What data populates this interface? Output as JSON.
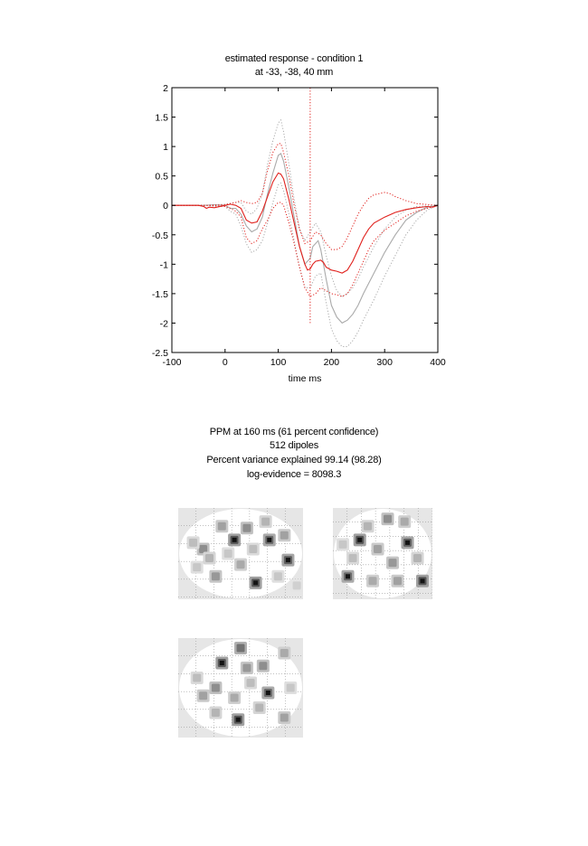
{
  "chart_data": {
    "type": "line",
    "title": "estimated response - condition 1",
    "subtitle": "at -33, -38, 40 mm",
    "xlabel": "time  ms",
    "ylabel": "",
    "xlim": [
      -100,
      400
    ],
    "ylim": [
      -2.5,
      2
    ],
    "xticks": [
      -100,
      0,
      100,
      200,
      300,
      400
    ],
    "yticks": [
      2,
      1.5,
      1,
      0.5,
      0,
      -0.5,
      -1,
      -1.5,
      -2,
      -2.5
    ],
    "vline_x": 160,
    "grid": false,
    "legend": "none",
    "series": [
      {
        "color": "#aaaaaa",
        "style": "solid",
        "points": [
          [
            -100,
            0
          ],
          [
            -40,
            0
          ],
          [
            -20,
            0.01
          ],
          [
            0,
            0
          ],
          [
            10,
            -0.05
          ],
          [
            20,
            -0.05
          ],
          [
            30,
            -0.15
          ],
          [
            40,
            -0.35
          ],
          [
            50,
            -0.45
          ],
          [
            60,
            -0.4
          ],
          [
            70,
            -0.2
          ],
          [
            80,
            0.2
          ],
          [
            90,
            0.55
          ],
          [
            100,
            0.85
          ],
          [
            105,
            0.88
          ],
          [
            110,
            0.75
          ],
          [
            120,
            0.3
          ],
          [
            130,
            -0.2
          ],
          [
            140,
            -0.7
          ],
          [
            150,
            -1.0
          ],
          [
            160,
            -0.9
          ],
          [
            165,
            -0.7
          ],
          [
            175,
            -0.6
          ],
          [
            180,
            -0.75
          ],
          [
            190,
            -1.25
          ],
          [
            200,
            -1.7
          ],
          [
            210,
            -1.9
          ],
          [
            220,
            -2.0
          ],
          [
            230,
            -1.95
          ],
          [
            240,
            -1.85
          ],
          [
            250,
            -1.7
          ],
          [
            260,
            -1.5
          ],
          [
            280,
            -1.15
          ],
          [
            300,
            -0.8
          ],
          [
            320,
            -0.5
          ],
          [
            340,
            -0.25
          ],
          [
            360,
            -0.12
          ],
          [
            380,
            -0.03
          ],
          [
            400,
            0
          ]
        ]
      },
      {
        "color": "#aaaaaa",
        "style": "dotted",
        "points": [
          [
            -100,
            0
          ],
          [
            -40,
            0
          ],
          [
            0,
            0.02
          ],
          [
            20,
            0.05
          ],
          [
            30,
            0.05
          ],
          [
            40,
            -0.1
          ],
          [
            50,
            -0.15
          ],
          [
            60,
            -0.05
          ],
          [
            70,
            0.2
          ],
          [
            80,
            0.7
          ],
          [
            90,
            1.1
          ],
          [
            100,
            1.4
          ],
          [
            105,
            1.45
          ],
          [
            110,
            1.25
          ],
          [
            120,
            0.7
          ],
          [
            130,
            0.1
          ],
          [
            140,
            -0.4
          ],
          [
            150,
            -0.6
          ],
          [
            160,
            -0.45
          ],
          [
            170,
            -0.3
          ],
          [
            180,
            -0.45
          ],
          [
            190,
            -0.85
          ],
          [
            200,
            -1.2
          ],
          [
            210,
            -1.45
          ],
          [
            220,
            -1.55
          ],
          [
            230,
            -1.5
          ],
          [
            240,
            -1.4
          ],
          [
            250,
            -1.25
          ],
          [
            260,
            -1.05
          ],
          [
            280,
            -0.7
          ],
          [
            300,
            -0.4
          ],
          [
            320,
            -0.2
          ],
          [
            340,
            -0.08
          ],
          [
            360,
            -0.02
          ],
          [
            400,
            0
          ]
        ]
      },
      {
        "color": "#aaaaaa",
        "style": "dotted",
        "points": [
          [
            -100,
            0
          ],
          [
            -40,
            0
          ],
          [
            0,
            -0.02
          ],
          [
            10,
            -0.1
          ],
          [
            20,
            -0.15
          ],
          [
            30,
            -0.35
          ],
          [
            40,
            -0.65
          ],
          [
            50,
            -0.8
          ],
          [
            60,
            -0.75
          ],
          [
            70,
            -0.6
          ],
          [
            80,
            -0.3
          ],
          [
            90,
            0.05
          ],
          [
            100,
            0.35
          ],
          [
            105,
            0.38
          ],
          [
            110,
            0.25
          ],
          [
            120,
            -0.15
          ],
          [
            130,
            -0.6
          ],
          [
            140,
            -1.05
          ],
          [
            150,
            -1.4
          ],
          [
            160,
            -1.4
          ],
          [
            170,
            -1.2
          ],
          [
            180,
            -1.15
          ],
          [
            190,
            -1.65
          ],
          [
            200,
            -2.1
          ],
          [
            210,
            -2.3
          ],
          [
            220,
            -2.4
          ],
          [
            230,
            -2.4
          ],
          [
            240,
            -2.3
          ],
          [
            250,
            -2.15
          ],
          [
            260,
            -1.95
          ],
          [
            280,
            -1.6
          ],
          [
            300,
            -1.2
          ],
          [
            320,
            -0.85
          ],
          [
            340,
            -0.5
          ],
          [
            360,
            -0.25
          ],
          [
            380,
            -0.08
          ],
          [
            400,
            0
          ]
        ]
      },
      {
        "color": "#e0201c",
        "style": "solid",
        "points": [
          [
            -100,
            0
          ],
          [
            -50,
            0
          ],
          [
            -40,
            -0.02
          ],
          [
            -35,
            -0.05
          ],
          [
            -30,
            -0.03
          ],
          [
            -20,
            -0.04
          ],
          [
            0,
            0
          ],
          [
            10,
            0.02
          ],
          [
            20,
            0
          ],
          [
            30,
            -0.05
          ],
          [
            40,
            -0.25
          ],
          [
            50,
            -0.3
          ],
          [
            60,
            -0.28
          ],
          [
            70,
            -0.1
          ],
          [
            80,
            0.15
          ],
          [
            90,
            0.4
          ],
          [
            100,
            0.55
          ],
          [
            105,
            0.53
          ],
          [
            110,
            0.45
          ],
          [
            120,
            0.1
          ],
          [
            130,
            -0.3
          ],
          [
            140,
            -0.7
          ],
          [
            150,
            -1.0
          ],
          [
            155,
            -1.1
          ],
          [
            160,
            -1.08
          ],
          [
            165,
            -1.0
          ],
          [
            170,
            -0.95
          ],
          [
            180,
            -0.93
          ],
          [
            185,
            -0.97
          ],
          [
            190,
            -1.05
          ],
          [
            200,
            -1.1
          ],
          [
            210,
            -1.12
          ],
          [
            220,
            -1.15
          ],
          [
            230,
            -1.1
          ],
          [
            240,
            -0.95
          ],
          [
            250,
            -0.75
          ],
          [
            260,
            -0.55
          ],
          [
            270,
            -0.4
          ],
          [
            280,
            -0.3
          ],
          [
            300,
            -0.2
          ],
          [
            320,
            -0.12
          ],
          [
            340,
            -0.07
          ],
          [
            360,
            -0.04
          ],
          [
            380,
            -0.02
          ],
          [
            390,
            -0.03
          ],
          [
            400,
            0
          ]
        ]
      },
      {
        "color": "#e0201c",
        "style": "dotted",
        "points": [
          [
            -100,
            0
          ],
          [
            -40,
            0
          ],
          [
            0,
            0.01
          ],
          [
            20,
            0.05
          ],
          [
            30,
            0.08
          ],
          [
            40,
            0.05
          ],
          [
            50,
            0.03
          ],
          [
            60,
            0.05
          ],
          [
            70,
            0.2
          ],
          [
            80,
            0.6
          ],
          [
            90,
            0.9
          ],
          [
            100,
            1.05
          ],
          [
            105,
            1.05
          ],
          [
            110,
            0.9
          ],
          [
            120,
            0.5
          ],
          [
            130,
            0.0
          ],
          [
            140,
            -0.4
          ],
          [
            150,
            -0.65
          ],
          [
            160,
            -0.6
          ],
          [
            170,
            -0.45
          ],
          [
            180,
            -0.5
          ],
          [
            190,
            -0.65
          ],
          [
            200,
            -0.75
          ],
          [
            210,
            -0.75
          ],
          [
            220,
            -0.7
          ],
          [
            230,
            -0.55
          ],
          [
            240,
            -0.35
          ],
          [
            250,
            -0.15
          ],
          [
            260,
            0.0
          ],
          [
            270,
            0.12
          ],
          [
            280,
            0.18
          ],
          [
            290,
            0.2
          ],
          [
            300,
            0.22
          ],
          [
            310,
            0.2
          ],
          [
            320,
            0.15
          ],
          [
            340,
            0.08
          ],
          [
            360,
            0.03
          ],
          [
            400,
            0
          ]
        ]
      },
      {
        "color": "#e0201c",
        "style": "dotted",
        "points": [
          [
            -100,
            0
          ],
          [
            -40,
            0
          ],
          [
            0,
            -0.02
          ],
          [
            10,
            -0.05
          ],
          [
            20,
            -0.1
          ],
          [
            30,
            -0.2
          ],
          [
            40,
            -0.55
          ],
          [
            50,
            -0.65
          ],
          [
            60,
            -0.6
          ],
          [
            70,
            -0.4
          ],
          [
            80,
            -0.25
          ],
          [
            90,
            -0.05
          ],
          [
            100,
            0.05
          ],
          [
            105,
            0.05
          ],
          [
            110,
            0.0
          ],
          [
            120,
            -0.3
          ],
          [
            130,
            -0.65
          ],
          [
            140,
            -1.05
          ],
          [
            150,
            -1.4
          ],
          [
            160,
            -1.55
          ],
          [
            170,
            -1.5
          ],
          [
            180,
            -1.4
          ],
          [
            190,
            -1.45
          ],
          [
            200,
            -1.5
          ],
          [
            210,
            -1.52
          ],
          [
            220,
            -1.55
          ],
          [
            230,
            -1.5
          ],
          [
            240,
            -1.35
          ],
          [
            250,
            -1.15
          ],
          [
            260,
            -0.95
          ],
          [
            270,
            -0.75
          ],
          [
            280,
            -0.6
          ],
          [
            300,
            -0.42
          ],
          [
            320,
            -0.3
          ],
          [
            340,
            -0.18
          ],
          [
            360,
            -0.1
          ],
          [
            380,
            -0.05
          ],
          [
            400,
            0
          ]
        ]
      }
    ]
  },
  "ppm": {
    "line1": "PPM at 160 ms (61 percent confidence)",
    "line2": "512 dipoles",
    "line3": "Percent variance explained 99.14 (98.28)",
    "line4": "log-evidence = 8098.3"
  },
  "glass_brain": {
    "views": [
      {
        "blobs": [
          [
            0.45,
            0.35,
            0.9
          ],
          [
            0.62,
            0.82,
            0.9
          ],
          [
            0.88,
            0.57,
            0.85
          ],
          [
            0.73,
            0.35,
            0.8
          ],
          [
            0.2,
            0.45,
            0.6
          ],
          [
            0.3,
            0.75,
            0.55
          ],
          [
            0.55,
            0.22,
            0.6
          ],
          [
            0.85,
            0.3,
            0.5
          ],
          [
            0.35,
            0.2,
            0.5
          ],
          [
            0.12,
            0.38,
            0.35
          ],
          [
            0.5,
            0.62,
            0.45
          ],
          [
            0.7,
            0.15,
            0.4
          ],
          [
            0.6,
            0.45,
            0.35
          ],
          [
            0.8,
            0.75,
            0.3
          ],
          [
            0.25,
            0.55,
            0.4
          ],
          [
            0.4,
            0.5,
            0.3
          ],
          [
            0.95,
            0.85,
            0.25
          ],
          [
            0.15,
            0.65,
            0.3
          ]
        ]
      },
      {
        "blobs": [
          [
            0.27,
            0.35,
            0.9
          ],
          [
            0.75,
            0.38,
            0.85
          ],
          [
            0.9,
            0.8,
            0.9
          ],
          [
            0.15,
            0.75,
            0.8
          ],
          [
            0.55,
            0.12,
            0.6
          ],
          [
            0.6,
            0.6,
            0.55
          ],
          [
            0.45,
            0.45,
            0.5
          ],
          [
            0.35,
            0.2,
            0.4
          ],
          [
            0.72,
            0.15,
            0.45
          ],
          [
            0.2,
            0.55,
            0.35
          ],
          [
            0.4,
            0.8,
            0.45
          ],
          [
            0.65,
            0.8,
            0.5
          ],
          [
            0.85,
            0.55,
            0.4
          ],
          [
            0.1,
            0.4,
            0.3
          ]
        ]
      },
      {
        "blobs": [
          [
            0.35,
            0.25,
            0.9
          ],
          [
            0.48,
            0.82,
            0.9
          ],
          [
            0.5,
            0.1,
            0.75
          ],
          [
            0.72,
            0.55,
            0.8
          ],
          [
            0.3,
            0.5,
            0.6
          ],
          [
            0.55,
            0.3,
            0.55
          ],
          [
            0.68,
            0.28,
            0.6
          ],
          [
            0.2,
            0.58,
            0.5
          ],
          [
            0.85,
            0.15,
            0.45
          ],
          [
            0.85,
            0.8,
            0.5
          ],
          [
            0.45,
            0.6,
            0.45
          ],
          [
            0.15,
            0.4,
            0.35
          ],
          [
            0.65,
            0.7,
            0.4
          ],
          [
            0.3,
            0.75,
            0.4
          ],
          [
            0.9,
            0.5,
            0.3
          ],
          [
            0.58,
            0.45,
            0.35
          ]
        ]
      }
    ]
  }
}
